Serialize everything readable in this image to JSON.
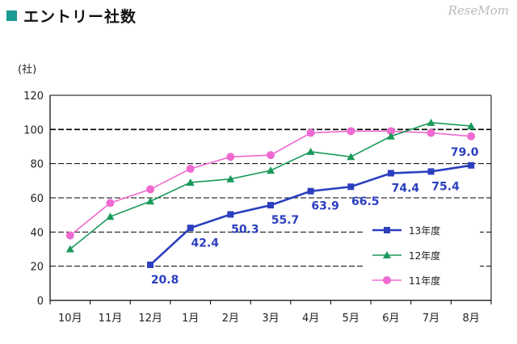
{
  "header": {
    "title": "エントリー社数",
    "watermark": "ReseMom"
  },
  "chart_data": {
    "type": "line",
    "title": "エントリー社数",
    "ylabel": "(社)",
    "xlabel": "",
    "ylim": [
      0,
      120
    ],
    "yticks": [
      0,
      20,
      40,
      60,
      80,
      100,
      120
    ],
    "grid": true,
    "legend_position": "bottom-right",
    "categories": [
      "10月",
      "11月",
      "12月",
      "1月",
      "2月",
      "3月",
      "4月",
      "5月",
      "6月",
      "7月",
      "8月"
    ],
    "series": [
      {
        "name": "13年度",
        "color": "#2b3fbf",
        "marker": "square",
        "values": [
          null,
          null,
          20.8,
          42.4,
          50.3,
          55.7,
          63.9,
          66.5,
          74.4,
          75.4,
          79.0
        ],
        "labels": [
          "",
          "",
          "20.8",
          "42.4",
          "50.3",
          "55.7",
          "63.9",
          "66.5",
          "74.4",
          "75.4",
          "79.0"
        ]
      },
      {
        "name": "12年度",
        "color": "#1a9a5a",
        "marker": "triangle",
        "values": [
          30,
          49,
          58,
          69,
          71,
          76,
          87,
          84,
          96,
          104,
          102
        ]
      },
      {
        "name": "11年度",
        "color": "#ee6ad0",
        "marker": "circle",
        "values": [
          38,
          57,
          65,
          77,
          84,
          85,
          98,
          99,
          99,
          98,
          96
        ]
      }
    ]
  }
}
